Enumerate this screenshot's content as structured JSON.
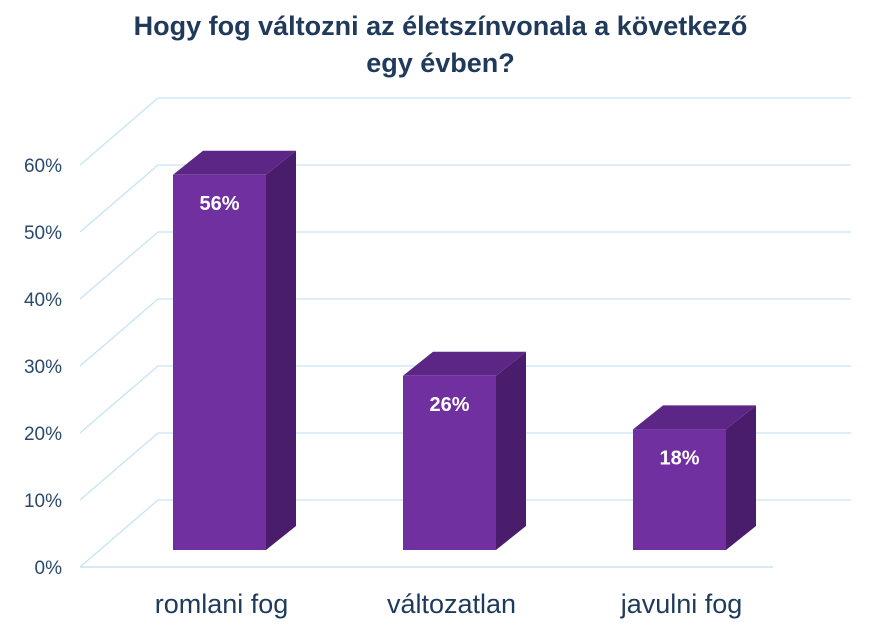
{
  "chart_data": {
    "type": "bar",
    "title": [
      "Hogy fog változni az életszínvonala a következő",
      "egy évben?"
    ],
    "categories": [
      "romlani fog",
      "változatlan",
      "javulni fog"
    ],
    "values": [
      56,
      26,
      18
    ],
    "data_labels": [
      "56%",
      "26%",
      "18%"
    ],
    "yticks": [
      0,
      10,
      20,
      30,
      40,
      50,
      60
    ],
    "ytick_labels": [
      "0%",
      "10%",
      "20%",
      "30%",
      "40%",
      "50%",
      "60%"
    ],
    "ylim": [
      0,
      65
    ],
    "grid": true,
    "style": "3d-column",
    "colors": {
      "bar_front": "#7030a0",
      "bar_side": "#4a1d6c",
      "bar_top": "#5b2685",
      "grid": "#c6e4f4",
      "title": "#1f3a5a",
      "tick": "#2a4a6b"
    }
  }
}
